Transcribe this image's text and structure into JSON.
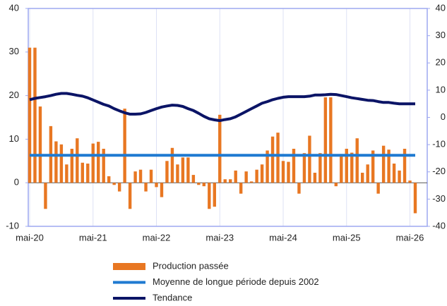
{
  "chart_data": {
    "type": "bar",
    "categories": [
      "mai-20",
      null,
      null,
      null,
      null,
      null,
      null,
      null,
      null,
      null,
      null,
      null,
      "mai-21",
      null,
      null,
      null,
      null,
      null,
      null,
      null,
      null,
      null,
      null,
      null,
      "mai-22",
      null,
      null,
      null,
      null,
      null,
      null,
      null,
      null,
      null,
      null,
      null,
      "mai-23",
      null,
      null,
      null,
      null,
      null,
      null,
      null,
      null,
      null,
      null,
      null,
      "mai-24",
      null,
      null,
      null,
      null,
      null,
      null,
      null,
      null,
      null,
      null,
      null,
      "mai-25",
      null,
      null,
      null,
      null,
      null,
      null,
      null,
      null,
      null,
      null,
      null,
      "mai-26",
      null
    ],
    "series": [
      {
        "name": "Production passée",
        "type": "bar",
        "color": "#e87722",
        "values": [
          31,
          31,
          17.5,
          -6,
          13,
          9.5,
          8.8,
          4.2,
          7.8,
          10.2,
          4.6,
          4.4,
          9,
          9.4,
          7.8,
          1.5,
          -0.5,
          -2,
          17,
          -6,
          2.6,
          3,
          -2,
          3,
          -1,
          -3.3,
          5,
          8,
          4.2,
          5.8,
          5.8,
          1.8,
          -0.5,
          -0.8,
          -6,
          -5.5,
          15.6,
          0.8,
          0.8,
          2.8,
          -2.5,
          2.6,
          0.3,
          3,
          4.2,
          7.4,
          10.6,
          11.5,
          5,
          4.8,
          7.8,
          -2.5,
          6.8,
          10.8,
          2.3,
          6.8,
          19.6,
          19.6,
          -0.8,
          6.6,
          7.8,
          6.9,
          10.2,
          2.3,
          4.2,
          7.4,
          -2.5,
          8.5,
          7.6,
          4.4,
          2.8,
          7.8,
          0.5,
          -7
        ]
      },
      {
        "name": "Moyenne de longue période depuis 2002",
        "type": "line",
        "color": "#1f7ad1",
        "values": [
          6.3,
          6.3,
          6.3,
          6.3,
          6.3,
          6.3,
          6.3,
          6.3,
          6.3,
          6.3,
          6.3,
          6.3,
          6.3,
          6.3,
          6.3,
          6.3,
          6.3,
          6.3,
          6.3,
          6.3,
          6.3,
          6.3,
          6.3,
          6.3,
          6.3,
          6.3,
          6.3,
          6.3,
          6.3,
          6.3,
          6.3,
          6.3,
          6.3,
          6.3,
          6.3,
          6.3,
          6.3,
          6.3,
          6.3,
          6.3,
          6.3,
          6.3,
          6.3,
          6.3,
          6.3,
          6.3,
          6.3,
          6.3,
          6.3,
          6.3,
          6.3,
          6.3,
          6.3,
          6.3,
          6.3,
          6.3,
          6.3,
          6.3,
          6.3,
          6.3,
          6.3,
          6.3,
          6.3,
          6.3,
          6.3,
          6.3,
          6.3,
          6.3,
          6.3,
          6.3,
          6.3,
          6.3,
          6.3,
          6.3
        ]
      },
      {
        "name": "Tendance",
        "type": "line",
        "axis": "y2",
        "color": "#0b1466",
        "values": [
          6.5,
          7,
          7.3,
          7.6,
          8,
          8.5,
          8.8,
          8.8,
          8.5,
          8.1,
          7.8,
          7.2,
          6.4,
          5.6,
          4.8,
          4.2,
          3.2,
          2.4,
          1.7,
          1.2,
          1.2,
          1.3,
          1.8,
          2.5,
          3.2,
          3.8,
          4.2,
          4.5,
          4.4,
          4,
          3.2,
          2.5,
          1.5,
          0.4,
          -0.5,
          -0.9,
          -1.2,
          -0.8,
          -0.5,
          0.2,
          1.2,
          2.2,
          3.2,
          4.2,
          5.2,
          5.8,
          6.5,
          7,
          7.4,
          7.6,
          7.6,
          7.6,
          7.6,
          7.8,
          8.2,
          8.2,
          8.3,
          8.5,
          8.4,
          8,
          7.6,
          7.2,
          6.9,
          6.6,
          6.3,
          6.2,
          5.8,
          5.5,
          5.5,
          5.2,
          5,
          5,
          5,
          5
        ]
      }
    ],
    "ylim": [
      -10,
      40
    ],
    "yticks": [
      -10,
      0,
      10,
      20,
      30,
      40
    ],
    "y2lim": [
      -40,
      40
    ],
    "y2ticks": [
      -40,
      -30,
      -20,
      -10,
      0,
      10,
      20,
      30,
      40
    ],
    "legend": "bottom"
  }
}
